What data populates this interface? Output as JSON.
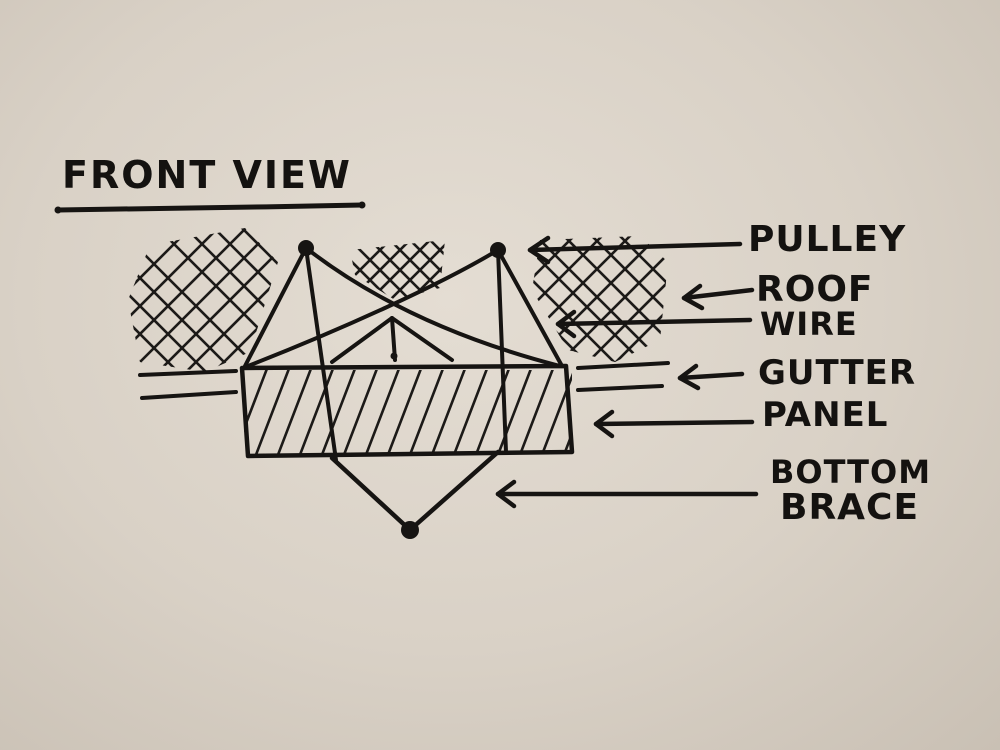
{
  "title": "FRONT VIEW",
  "labels": {
    "pulley": "PULLEY",
    "roof": "ROOF",
    "wire": "WIRE",
    "gutter": "GUTTER",
    "panel": "PANEL",
    "bottom": "BOTTOM",
    "brace": "BRACE"
  },
  "colors": {
    "paper": "#ddd6cc",
    "ink": "#161412"
  }
}
